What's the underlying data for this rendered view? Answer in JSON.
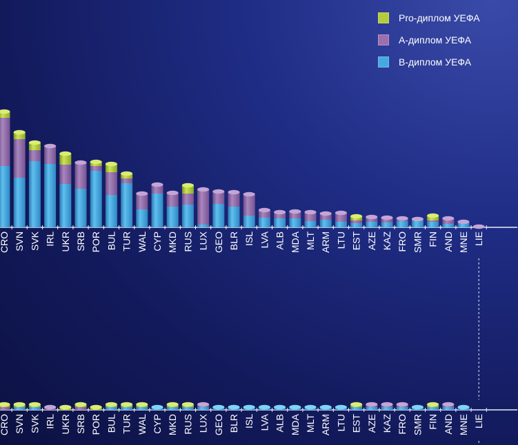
{
  "legend": {
    "items": [
      {
        "label": "Pro-диплом УЕФА",
        "color": "#b5cc3a"
      },
      {
        "label": "А-диплом УЕФА",
        "color": "#9c6fae"
      },
      {
        "label": "В-диплом УЕФА",
        "color": "#45a9df"
      }
    ]
  },
  "chart_data": [
    {
      "type": "bar",
      "stacked": true,
      "categories": [
        "CRO",
        "SVN",
        "SVK",
        "IRL",
        "UKR",
        "SRB",
        "POR",
        "BUL",
        "TUR",
        "WAL",
        "CYP",
        "MKD",
        "RUS",
        "LUX",
        "GEO",
        "BLR",
        "ISL",
        "LVA",
        "ALB",
        "MDA",
        "MLT",
        "ARM",
        "LTU",
        "EST",
        "AZE",
        "KAZ",
        "FRO",
        "SMR",
        "FIN",
        "AND",
        "MNE",
        "LIE"
      ],
      "series": [
        {
          "name": "В-диплом УЕФА",
          "values": [
            89,
            72,
            96,
            92,
            63,
            56,
            82,
            47,
            64,
            26,
            49,
            30,
            33,
            4,
            34,
            30,
            17,
            14,
            13,
            13,
            9,
            11,
            8,
            6,
            8,
            7,
            9,
            10,
            8,
            5,
            7,
            0
          ]
        },
        {
          "name": "А-диплом УЕФА",
          "values": [
            70,
            56,
            16,
            26,
            28,
            38,
            7,
            33,
            7,
            23,
            13,
            20,
            16,
            51,
            18,
            21,
            31,
            11,
            9,
            10,
            13,
            9,
            13,
            4,
            7,
            7,
            4,
            2,
            2,
            8,
            1,
            1
          ]
        },
        {
          "name": "Pro-диплом УЕФА",
          "values": [
            9,
            10,
            11,
            0,
            16,
            0,
            6,
            12,
            7,
            0,
            0,
            0,
            12,
            0,
            0,
            0,
            0,
            0,
            0,
            0,
            0,
            0,
            0,
            6,
            0,
            0,
            0,
            0,
            7,
            0,
            0,
            0
          ]
        }
      ],
      "ylim": [
        0,
        180
      ],
      "grid": false,
      "legend": "top-right"
    },
    {
      "type": "bar",
      "stacked": true,
      "categories": [
        "CRO",
        "SVN",
        "SVK",
        "IRL",
        "UKR",
        "SRB",
        "POR",
        "BUL",
        "TUR",
        "WAL",
        "CYP",
        "MKD",
        "RUS",
        "LUX",
        "GEO",
        "BLR",
        "ISL",
        "LVA",
        "ALB",
        "MDA",
        "MLT",
        "ARM",
        "LTU",
        "EST",
        "AZE",
        "KAZ",
        "FRO",
        "SMR",
        "FIN",
        "AND",
        "MNE",
        "LIE"
      ],
      "series": [
        {
          "name": "В-диплом УЕФА",
          "values": [
            0,
            1,
            1,
            0,
            0,
            0,
            0,
            1,
            1,
            1,
            1,
            1,
            1,
            1,
            1,
            1,
            1,
            1,
            1,
            1,
            1,
            1,
            1,
            1,
            1,
            1,
            1,
            1,
            1,
            1,
            1,
            0
          ]
        },
        {
          "name": "А-диплом УЕФА",
          "values": [
            1,
            0,
            0,
            1,
            0,
            1,
            0,
            0,
            0,
            0,
            0,
            0,
            0,
            1,
            0,
            0,
            0,
            0,
            0,
            0,
            0,
            0,
            0,
            0,
            1,
            1,
            1,
            0,
            0,
            1,
            0,
            0
          ]
        },
        {
          "name": "Pro-диплом УЕФА",
          "values": [
            1,
            1,
            1,
            0,
            1,
            1,
            1,
            1,
            1,
            1,
            0,
            1,
            1,
            0,
            0,
            0,
            0,
            0,
            0,
            0,
            0,
            0,
            0,
            1,
            0,
            0,
            0,
            0,
            1,
            0,
            0,
            0
          ]
        }
      ],
      "legend": "top-right"
    }
  ]
}
